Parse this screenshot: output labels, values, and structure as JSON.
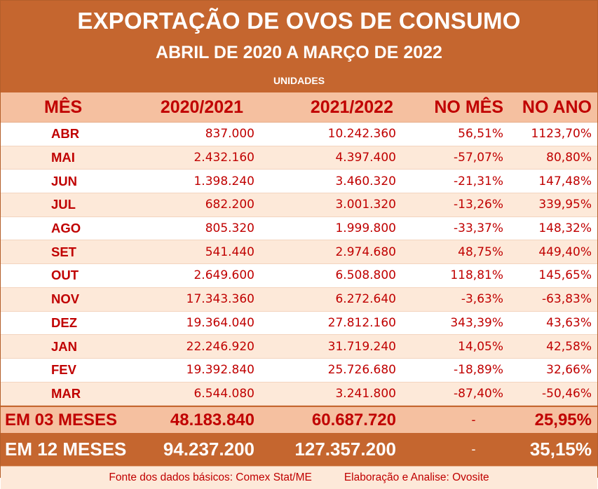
{
  "title": "EXPORTAÇÃO DE OVOS DE CONSUMO",
  "subtitle": "ABRIL DE 2020 A MARÇO DE 2022",
  "unit": "UNIDADES",
  "columns": {
    "month": "MÊS",
    "period_a": "2020/2021",
    "period_b": "2021/2022",
    "month_change": "NO MÊS",
    "year_change": "NO ANO"
  },
  "rows": [
    {
      "month": "ABR",
      "a": "837.000",
      "b": "10.242.360",
      "mes": "56,51%",
      "ano": "1123,70%"
    },
    {
      "month": "MAI",
      "a": "2.432.160",
      "b": "4.397.400",
      "mes": "-57,07%",
      "ano": "80,80%"
    },
    {
      "month": "JUN",
      "a": "1.398.240",
      "b": "3.460.320",
      "mes": "-21,31%",
      "ano": "147,48%"
    },
    {
      "month": "JUL",
      "a": "682.200",
      "b": "3.001.320",
      "mes": "-13,26%",
      "ano": "339,95%"
    },
    {
      "month": "AGO",
      "a": "805.320",
      "b": "1.999.800",
      "mes": "-33,37%",
      "ano": "148,32%"
    },
    {
      "month": "SET",
      "a": "541.440",
      "b": "2.974.680",
      "mes": "48,75%",
      "ano": "449,40%"
    },
    {
      "month": "OUT",
      "a": "2.649.600",
      "b": "6.508.800",
      "mes": "118,81%",
      "ano": "145,65%"
    },
    {
      "month": "NOV",
      "a": "17.343.360",
      "b": "6.272.640",
      "mes": "-3,63%",
      "ano": "-63,83%"
    },
    {
      "month": "DEZ",
      "a": "19.364.040",
      "b": "27.812.160",
      "mes": "343,39%",
      "ano": "43,63%"
    },
    {
      "month": "JAN",
      "a": "22.246.920",
      "b": "31.719.240",
      "mes": "14,05%",
      "ano": "42,58%"
    },
    {
      "month": "FEV",
      "a": "19.392.840",
      "b": "25.726.680",
      "mes": "-18,89%",
      "ano": "32,66%"
    },
    {
      "month": "MAR",
      "a": "6.544.080",
      "b": "3.241.800",
      "mes": "-87,40%",
      "ano": "-50,46%"
    }
  ],
  "totals": {
    "three_months": {
      "label": "EM 03 MESES",
      "a": "48.183.840",
      "b": "60.687.720",
      "mes": "-",
      "ano": "25,95%"
    },
    "twelve_months": {
      "label": "EM 12 MESES",
      "a": "94.237.200",
      "b": "127.357.200",
      "mes": "-",
      "ano": "35,15%"
    }
  },
  "footer": {
    "source": "Fonte dos dados básicos: Comex Stat/ME",
    "credit": "Elaboração e Analise: Ovosite"
  }
}
